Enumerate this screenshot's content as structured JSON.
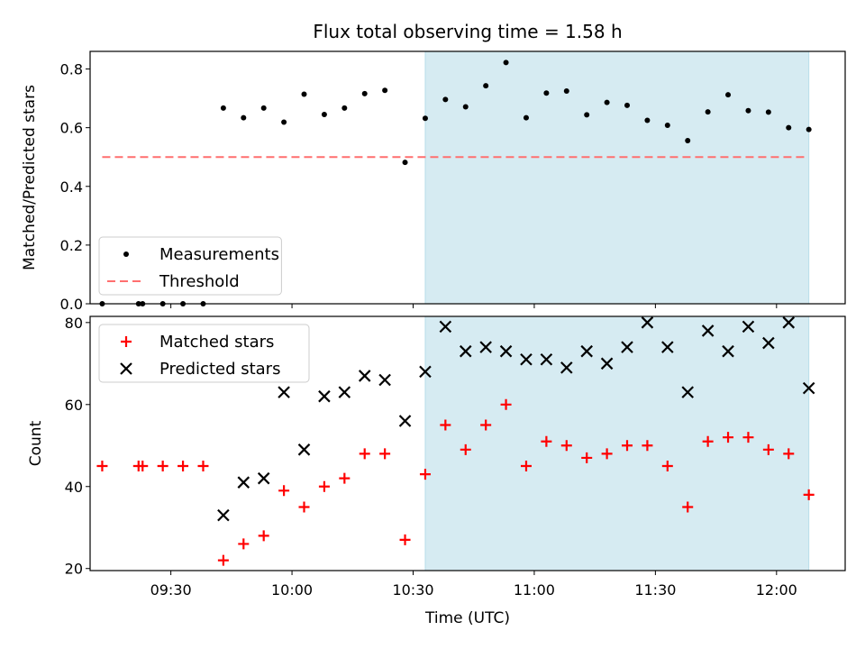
{
  "chart_data": [
    {
      "type": "scatter",
      "title": "Flux total observing time = 1.58 h",
      "ylabel": "Matched/Predicted stars",
      "ylim": [
        0,
        0.86
      ],
      "yticks": [
        "0.0",
        "0.2",
        "0.4",
        "0.6",
        "0.8"
      ],
      "shaded_span": [
        "10:33",
        "12:08"
      ],
      "shaded_color": "#add8e6",
      "legend_position": "lower left",
      "series": [
        {
          "name": "Measurements",
          "marker": "dot",
          "color": "#000000",
          "points": [
            [
              "09:13",
              0.0
            ],
            [
              "09:22",
              0.0
            ],
            [
              "09:23",
              0.0
            ],
            [
              "09:28",
              0.0
            ],
            [
              "09:33",
              0.0
            ],
            [
              "09:38",
              0.0
            ],
            [
              "09:43",
              0.667
            ],
            [
              "09:48",
              0.634
            ],
            [
              "09:53",
              0.667
            ],
            [
              "09:58",
              0.619
            ],
            [
              "10:03",
              0.714
            ],
            [
              "10:08",
              0.645
            ],
            [
              "10:13",
              0.667
            ],
            [
              "10:18",
              0.716
            ],
            [
              "10:23",
              0.727
            ],
            [
              "10:28",
              0.482
            ],
            [
              "10:33",
              0.632
            ],
            [
              "10:38",
              0.696
            ],
            [
              "10:43",
              0.671
            ],
            [
              "10:48",
              0.743
            ],
            [
              "10:53",
              0.822
            ],
            [
              "10:58",
              0.634
            ],
            [
              "11:03",
              0.718
            ],
            [
              "11:08",
              0.725
            ],
            [
              "11:13",
              0.644
            ],
            [
              "11:18",
              0.686
            ],
            [
              "11:23",
              0.676
            ],
            [
              "11:28",
              0.625
            ],
            [
              "11:33",
              0.608
            ],
            [
              "11:38",
              0.556
            ],
            [
              "11:43",
              0.654
            ],
            [
              "11:48",
              0.712
            ],
            [
              "11:53",
              0.658
            ],
            [
              "11:58",
              0.653
            ],
            [
              "12:03",
              0.6
            ],
            [
              "12:08",
              0.594
            ]
          ]
        },
        {
          "name": "Threshold",
          "style": "dashed",
          "color": "#ff6f6f",
          "points": [
            [
              "09:13",
              0.5
            ],
            [
              "12:07",
              0.5
            ]
          ]
        }
      ]
    },
    {
      "type": "scatter",
      "xlabel": "Time (UTC)",
      "ylabel": "Count",
      "ylim": [
        19.5,
        81.5
      ],
      "yticks": [
        "20",
        "40",
        "60",
        "80"
      ],
      "xticks": [
        "09:30",
        "10:00",
        "10:30",
        "11:00",
        "11:30",
        "12:00"
      ],
      "shaded_span": [
        "10:33",
        "12:08"
      ],
      "shaded_color": "#add8e6",
      "legend_position": "upper left",
      "series": [
        {
          "name": "Matched stars",
          "marker": "plus",
          "color": "#ff0000",
          "points": [
            [
              "09:13",
              45
            ],
            [
              "09:22",
              45
            ],
            [
              "09:23",
              45
            ],
            [
              "09:28",
              45
            ],
            [
              "09:33",
              45
            ],
            [
              "09:38",
              45
            ],
            [
              "09:43",
              22
            ],
            [
              "09:48",
              26
            ],
            [
              "09:53",
              28
            ],
            [
              "09:58",
              39
            ],
            [
              "10:03",
              35
            ],
            [
              "10:08",
              40
            ],
            [
              "10:13",
              42
            ],
            [
              "10:18",
              48
            ],
            [
              "10:23",
              48
            ],
            [
              "10:28",
              27
            ],
            [
              "10:33",
              43
            ],
            [
              "10:38",
              55
            ],
            [
              "10:43",
              49
            ],
            [
              "10:48",
              55
            ],
            [
              "10:53",
              60
            ],
            [
              "10:58",
              45
            ],
            [
              "11:03",
              51
            ],
            [
              "11:08",
              50
            ],
            [
              "11:13",
              47
            ],
            [
              "11:18",
              48
            ],
            [
              "11:23",
              50
            ],
            [
              "11:28",
              50
            ],
            [
              "11:33",
              45
            ],
            [
              "11:38",
              35
            ],
            [
              "11:43",
              51
            ],
            [
              "11:48",
              52
            ],
            [
              "11:53",
              52
            ],
            [
              "11:58",
              49
            ],
            [
              "12:03",
              48
            ],
            [
              "12:08",
              38
            ]
          ]
        },
        {
          "name": "Predicted stars",
          "marker": "x",
          "color": "#000000",
          "points": [
            [
              "09:43",
              33
            ],
            [
              "09:48",
              41
            ],
            [
              "09:53",
              42
            ],
            [
              "09:58",
              63
            ],
            [
              "10:03",
              49
            ],
            [
              "10:08",
              62
            ],
            [
              "10:13",
              63
            ],
            [
              "10:18",
              67
            ],
            [
              "10:23",
              66
            ],
            [
              "10:28",
              56
            ],
            [
              "10:33",
              68
            ],
            [
              "10:38",
              79
            ],
            [
              "10:43",
              73
            ],
            [
              "10:48",
              74
            ],
            [
              "10:53",
              73
            ],
            [
              "10:58",
              71
            ],
            [
              "11:03",
              71
            ],
            [
              "11:08",
              69
            ],
            [
              "11:13",
              73
            ],
            [
              "11:18",
              70
            ],
            [
              "11:23",
              74
            ],
            [
              "11:28",
              80
            ],
            [
              "11:33",
              74
            ],
            [
              "11:38",
              63
            ],
            [
              "11:43",
              78
            ],
            [
              "11:48",
              73
            ],
            [
              "11:53",
              79
            ],
            [
              "11:58",
              75
            ],
            [
              "12:03",
              80
            ],
            [
              "12:08",
              64
            ]
          ]
        }
      ]
    }
  ]
}
